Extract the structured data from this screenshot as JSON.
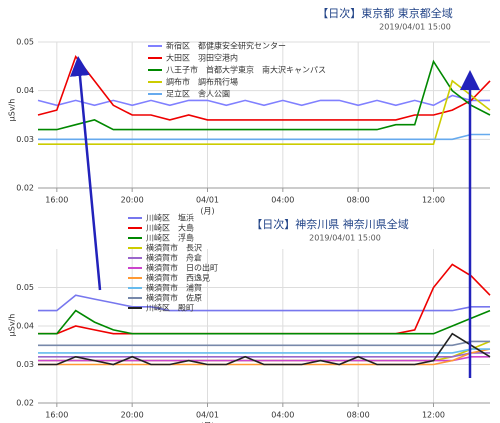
{
  "chart_data": [
    {
      "type": "line",
      "title": "【日次】東京都 東京都全域",
      "subtitle": "2019/04/01 15:00",
      "ylabel": "μSv/h",
      "x": [
        15,
        16,
        17,
        18,
        19,
        20,
        21,
        22,
        23,
        24,
        25,
        26,
        27,
        28,
        29,
        30,
        31,
        32,
        33,
        34,
        35,
        36,
        37,
        38,
        39
      ],
      "xlim": [
        15,
        39
      ],
      "xticks": [
        {
          "value": 16,
          "label": "16:00"
        },
        {
          "value": 20,
          "label": "20:00"
        },
        {
          "value": 24,
          "label": "04/01"
        },
        {
          "value": 28,
          "label": "04:00"
        },
        {
          "value": 32,
          "label": "08:00"
        },
        {
          "value": 36,
          "label": "12:00"
        }
      ],
      "x_tick_sublabel": "(月)",
      "ylim": [
        0.02,
        0.05
      ],
      "yticks": [
        0.02,
        0.03,
        0.04,
        0.05
      ],
      "grid": true,
      "series": [
        {
          "name": "新宿区　都健康安全研究センター",
          "color": "#8080ff",
          "values": [
            0.038,
            0.037,
            0.038,
            0.037,
            0.038,
            0.037,
            0.038,
            0.037,
            0.038,
            0.038,
            0.037,
            0.038,
            0.037,
            0.038,
            0.037,
            0.038,
            0.038,
            0.037,
            0.038,
            0.037,
            0.038,
            0.037,
            0.039,
            0.038,
            0.038
          ]
        },
        {
          "name": "大田区　羽田空港内",
          "color": "#ee0000",
          "values": [
            0.035,
            0.036,
            0.047,
            0.042,
            0.037,
            0.035,
            0.035,
            0.034,
            0.035,
            0.034,
            0.034,
            0.034,
            0.034,
            0.034,
            0.034,
            0.034,
            0.034,
            0.034,
            0.034,
            0.034,
            0.035,
            0.035,
            0.036,
            0.038,
            0.042
          ]
        },
        {
          "name": "八王子市　首都大学東京　南大沢キャンパス",
          "color": "#008800",
          "values": [
            0.032,
            0.032,
            0.033,
            0.034,
            0.032,
            0.032,
            0.032,
            0.032,
            0.032,
            0.032,
            0.032,
            0.032,
            0.032,
            0.032,
            0.032,
            0.032,
            0.032,
            0.032,
            0.032,
            0.033,
            0.033,
            0.046,
            0.04,
            0.037,
            0.035
          ]
        },
        {
          "name": "調布市　調布飛行場",
          "color": "#cccc00",
          "values": [
            0.029,
            0.029,
            0.029,
            0.029,
            0.029,
            0.029,
            0.029,
            0.029,
            0.029,
            0.029,
            0.029,
            0.029,
            0.029,
            0.029,
            0.029,
            0.029,
            0.029,
            0.029,
            0.029,
            0.029,
            0.029,
            0.029,
            0.042,
            0.039,
            0.036
          ]
        },
        {
          "name": "足立区　舎人公園",
          "color": "#66aaee",
          "values": [
            0.03,
            0.03,
            0.03,
            0.03,
            0.03,
            0.03,
            0.03,
            0.03,
            0.03,
            0.03,
            0.03,
            0.03,
            0.03,
            0.03,
            0.03,
            0.03,
            0.03,
            0.03,
            0.03,
            0.03,
            0.03,
            0.03,
            0.03,
            0.031,
            0.031
          ]
        }
      ]
    },
    {
      "type": "line",
      "title": "【日次】神奈川県 神奈川県全域",
      "subtitle": "2019/04/01 15:00",
      "ylabel": "μSv/h",
      "x": [
        15,
        16,
        17,
        18,
        19,
        20,
        21,
        22,
        23,
        24,
        25,
        26,
        27,
        28,
        29,
        30,
        31,
        32,
        33,
        34,
        35,
        36,
        37,
        38,
        39
      ],
      "xlim": [
        15,
        39
      ],
      "xticks": [
        {
          "value": 16,
          "label": "16:00"
        },
        {
          "value": 20,
          "label": "20:00"
        },
        {
          "value": 24,
          "label": "04/01"
        },
        {
          "value": 28,
          "label": "04:00"
        },
        {
          "value": 32,
          "label": "08:00"
        },
        {
          "value": 36,
          "label": "12:00"
        }
      ],
      "x_tick_sublabel": "(月)",
      "ylim": [
        0.02,
        0.06
      ],
      "yticks": [
        0.02,
        0.03,
        0.04,
        0.05
      ],
      "grid": true,
      "series": [
        {
          "name": "川崎区　塩浜",
          "color": "#7777ee",
          "values": [
            0.044,
            0.044,
            0.048,
            0.047,
            0.046,
            0.045,
            0.045,
            0.044,
            0.044,
            0.044,
            0.044,
            0.044,
            0.044,
            0.044,
            0.044,
            0.044,
            0.044,
            0.044,
            0.044,
            0.044,
            0.044,
            0.044,
            0.044,
            0.045,
            0.045
          ]
        },
        {
          "name": "川崎区　大島",
          "color": "#ee0000",
          "values": [
            0.038,
            0.038,
            0.04,
            0.039,
            0.038,
            0.038,
            0.038,
            0.038,
            0.038,
            0.038,
            0.038,
            0.038,
            0.038,
            0.038,
            0.038,
            0.038,
            0.038,
            0.038,
            0.038,
            0.038,
            0.039,
            0.05,
            0.056,
            0.053,
            0.048
          ]
        },
        {
          "name": "川崎区　浮島",
          "color": "#008800",
          "values": [
            0.038,
            0.038,
            0.044,
            0.041,
            0.039,
            0.038,
            0.038,
            0.038,
            0.038,
            0.038,
            0.038,
            0.038,
            0.038,
            0.038,
            0.038,
            0.038,
            0.038,
            0.038,
            0.038,
            0.038,
            0.038,
            0.038,
            0.04,
            0.042,
            0.044
          ]
        },
        {
          "name": "横須賀市　長沢",
          "color": "#cccc00",
          "values": [
            0.031,
            0.031,
            0.031,
            0.031,
            0.031,
            0.031,
            0.031,
            0.031,
            0.031,
            0.031,
            0.031,
            0.031,
            0.031,
            0.031,
            0.031,
            0.031,
            0.031,
            0.031,
            0.031,
            0.031,
            0.031,
            0.031,
            0.032,
            0.034,
            0.036
          ]
        },
        {
          "name": "横須賀市　舟倉",
          "color": "#9966cc",
          "values": [
            0.032,
            0.032,
            0.032,
            0.032,
            0.032,
            0.032,
            0.032,
            0.032,
            0.032,
            0.032,
            0.032,
            0.032,
            0.032,
            0.032,
            0.032,
            0.032,
            0.032,
            0.032,
            0.032,
            0.032,
            0.032,
            0.032,
            0.032,
            0.033,
            0.033
          ]
        },
        {
          "name": "横須賀市　日の出町",
          "color": "#cc44cc",
          "values": [
            0.031,
            0.031,
            0.031,
            0.031,
            0.031,
            0.031,
            0.031,
            0.031,
            0.031,
            0.031,
            0.031,
            0.031,
            0.031,
            0.031,
            0.031,
            0.031,
            0.031,
            0.031,
            0.031,
            0.031,
            0.031,
            0.031,
            0.031,
            0.032,
            0.032
          ]
        },
        {
          "name": "横須賀市　西逸見",
          "color": "#ff9933",
          "values": [
            0.03,
            0.03,
            0.03,
            0.03,
            0.03,
            0.03,
            0.03,
            0.03,
            0.03,
            0.03,
            0.03,
            0.03,
            0.03,
            0.03,
            0.03,
            0.03,
            0.03,
            0.03,
            0.03,
            0.03,
            0.03,
            0.03,
            0.031,
            0.033,
            0.034
          ]
        },
        {
          "name": "横須賀市　浦賀",
          "color": "#66bbee",
          "values": [
            0.033,
            0.033,
            0.033,
            0.033,
            0.033,
            0.033,
            0.033,
            0.033,
            0.033,
            0.033,
            0.033,
            0.033,
            0.033,
            0.033,
            0.033,
            0.033,
            0.033,
            0.033,
            0.033,
            0.033,
            0.033,
            0.033,
            0.033,
            0.034,
            0.034
          ]
        },
        {
          "name": "横須賀市　佐原",
          "color": "#7788aa",
          "values": [
            0.035,
            0.035,
            0.035,
            0.035,
            0.035,
            0.035,
            0.035,
            0.035,
            0.035,
            0.035,
            0.035,
            0.035,
            0.035,
            0.035,
            0.035,
            0.035,
            0.035,
            0.035,
            0.035,
            0.035,
            0.035,
            0.035,
            0.035,
            0.036,
            0.036
          ]
        },
        {
          "name": "川崎区　殿町",
          "color": "#222222",
          "values": [
            0.03,
            0.03,
            0.032,
            0.031,
            0.03,
            0.032,
            0.03,
            0.03,
            0.031,
            0.03,
            0.03,
            0.032,
            0.03,
            0.03,
            0.03,
            0.031,
            0.03,
            0.032,
            0.03,
            0.03,
            0.03,
            0.031,
            0.038,
            0.035,
            0.032
          ]
        }
      ]
    }
  ]
}
